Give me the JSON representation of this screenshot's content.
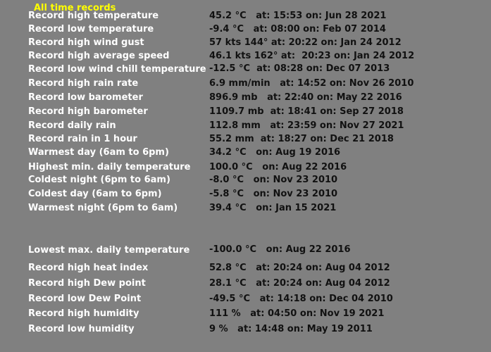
{
  "title": "All time records",
  "colors": {
    "background": "#808080",
    "title": "#ffff00",
    "label": "#ffffff",
    "value": "#111111"
  },
  "records": [
    {
      "label": "Record high temperature",
      "value": "45.2 °C   at: 15:53 on: Jun 28 2021"
    },
    {
      "label": "Record low temperature",
      "value": "-9.4 °C   at: 08:00 on: Feb 07 2014"
    },
    {
      "label": "Record high wind gust",
      "value": "57 kts 144° at: 20:22 on: Jan 24 2012"
    },
    {
      "label": "Record high average speed",
      "value": "46.1 kts 162° at:  20:23 on: Jan 24 2012"
    },
    {
      "label": "Record low wind chill temperature",
      "value": "-12.5 °C  at: 08:28 on: Dec 07 2013"
    },
    {
      "label": "Record high rain rate",
      "value": "6.9 mm/min   at: 14:52 on: Nov 26 2010"
    },
    {
      "label": "Record low barometer",
      "value": "896.9 mb   at: 22:40 on: May 22 2016"
    },
    {
      "label": "Record high barometer",
      "value": "1109.7 mb  at: 18:41 on: Sep 27 2018"
    },
    {
      "label": "Record daily rain",
      "value": "112.8 mm   at: 23:59 on: Nov 27 2021"
    },
    {
      "label": "Record rain in 1 hour",
      "value": "55.2 mm  at: 18:27 on: Dec 21 2018"
    },
    {
      "label": "Warmest day (6am to 6pm)",
      "value": "34.2 °C   on: Aug 19 2016"
    },
    {
      "label": "Highest min. daily temperature",
      "value": "100.0 °C   on: Aug 22 2016"
    },
    {
      "label": "Coldest night (6pm to 6am)",
      "value": "-8.0 °C   on: Nov 23 2010"
    },
    {
      "label": "Coldest day (6am to 6pm)",
      "value": "-5.8 °C   on: Nov 23 2010"
    },
    {
      "label": "Warmest night (6pm to 6am)",
      "value": "39.4 °C   on: Jan 15 2021"
    },
    {
      "label": "Lowest max. daily temperature",
      "value": "-100.0 °C   on: Aug 22 2016"
    },
    {
      "label": "Record high heat index",
      "value": "52.8 °C   at: 20:24 on: Aug 04 2012"
    },
    {
      "label": "Record high Dew point",
      "value": "28.1 °C   at: 20:24 on: Aug 04 2012"
    },
    {
      "label": "Record low Dew Point",
      "value": "-49.5 °C   at: 14:18 on: Dec 04 2010"
    },
    {
      "label": "Record high humidity",
      "value": "111 %   at: 04:50 on: Nov 19 2021"
    },
    {
      "label": "Record low humidity",
      "value": "9 %   at: 14:48 on: May 19 2011"
    }
  ]
}
